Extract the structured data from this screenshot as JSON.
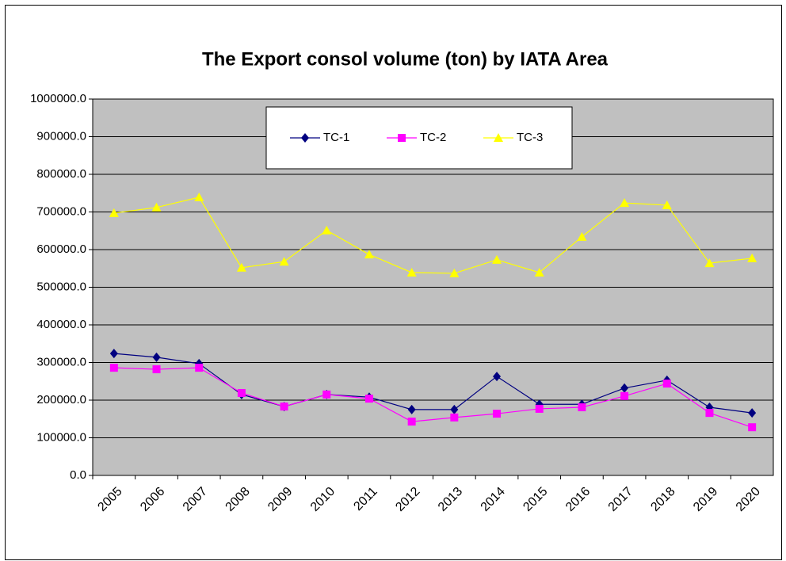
{
  "chart_data": {
    "type": "line",
    "title": "The Export consol volume (ton) by IATA Area",
    "categories": [
      "2005",
      "2006",
      "2007",
      "2008",
      "2009",
      "2010",
      "2011",
      "2012",
      "2013",
      "2014",
      "2015",
      "2016",
      "2017",
      "2018",
      "2019",
      "2020"
    ],
    "series": [
      {
        "name": "TC-1",
        "color": "#000080",
        "marker": "diamond",
        "values": [
          324000,
          314000,
          297000,
          215000,
          183000,
          215000,
          208000,
          175000,
          175000,
          263000,
          189000,
          189000,
          232000,
          253000,
          181000,
          166000
        ]
      },
      {
        "name": "TC-2",
        "color": "#ff00ff",
        "marker": "square",
        "values": [
          286000,
          282000,
          286000,
          219000,
          183000,
          215000,
          204000,
          143000,
          154000,
          164000,
          177000,
          181000,
          211000,
          244000,
          166000,
          128000
        ]
      },
      {
        "name": "TC-3",
        "color": "#ffff00",
        "marker": "triangle",
        "values": [
          697000,
          712000,
          739000,
          552000,
          568000,
          651000,
          587000,
          539000,
          537000,
          573000,
          539000,
          634000,
          724000,
          718000,
          564000,
          577000
        ]
      }
    ],
    "ylim": [
      0,
      1000000
    ],
    "yticks": [
      {
        "value": 0,
        "label": "0.0"
      },
      {
        "value": 100000,
        "label": "100000.0"
      },
      {
        "value": 200000,
        "label": "200000.0"
      },
      {
        "value": 300000,
        "label": "300000.0"
      },
      {
        "value": 400000,
        "label": "400000.0"
      },
      {
        "value": 500000,
        "label": "500000.0"
      },
      {
        "value": 600000,
        "label": "600000.0"
      },
      {
        "value": 700000,
        "label": "700000.0"
      },
      {
        "value": 800000,
        "label": "800000.0"
      },
      {
        "value": 900000,
        "label": "900000.0"
      },
      {
        "value": 1000000,
        "label": "1000000.0"
      }
    ],
    "grid": true,
    "legend": "top"
  }
}
